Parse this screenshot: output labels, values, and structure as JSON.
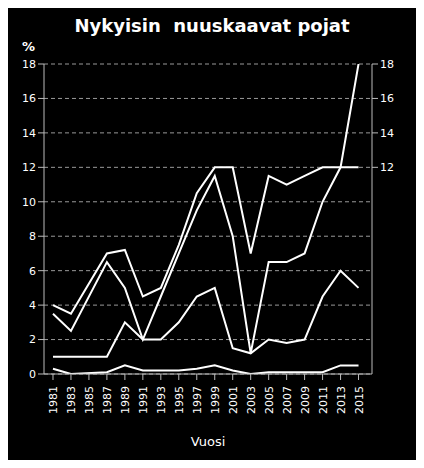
{
  "chart_data": {
    "type": "line",
    "title": "Nykyisin  nuuskaavat pojat",
    "xlabel": "Vuosi",
    "ylabel": "%",
    "xlim": [
      1980,
      2016.5
    ],
    "xticks": [
      1981,
      1983,
      1985,
      1987,
      1989,
      1991,
      1993,
      1995,
      1997,
      1999,
      2001,
      2003,
      2005,
      2007,
      2009,
      2011,
      2013,
      2015
    ],
    "ylim": [
      0,
      18
    ],
    "yticks": [
      0,
      2,
      4,
      6,
      8,
      10,
      12,
      14,
      16,
      18
    ],
    "y2lim": [
      0,
      18
    ],
    "y2ticks": [
      18,
      16,
      14,
      12
    ],
    "grid": "y",
    "series": [
      {
        "color": "#ffffff",
        "x": [
          1981,
          1983,
          1987,
          1989,
          1991,
          1993,
          1995,
          1997,
          1999,
          2001,
          2003,
          2005,
          2007,
          2009,
          2011,
          2013,
          2015
        ],
        "values": [
          4.0,
          3.5,
          7.0,
          7.2,
          4.5,
          5.0,
          7.5,
          10.5,
          12.0,
          12.0,
          7.0,
          11.5,
          11.0,
          11.5,
          12.0,
          12.0,
          12.0
        ]
      },
      {
        "color": "#ffffff",
        "x": [
          1981,
          1983,
          1987,
          1989,
          1991,
          1993,
          1995,
          1997,
          1999,
          2001,
          2003,
          2005,
          2007,
          2009,
          2011,
          2013,
          2015
        ],
        "values": [
          3.5,
          2.5,
          6.5,
          5.0,
          2.0,
          4.5,
          7.0,
          9.5,
          11.5,
          8.0,
          1.2,
          6.5,
          6.5,
          7.0,
          10.0,
          12.0,
          18.0
        ]
      },
      {
        "color": "#ffffff",
        "x": [
          1981,
          1983,
          1987,
          1989,
          1991,
          1993,
          1995,
          1997,
          1999,
          2001,
          2003,
          2005,
          2007,
          2009,
          2011,
          2013,
          2015
        ],
        "values": [
          1.0,
          1.0,
          1.0,
          3.0,
          2.0,
          2.0,
          3.0,
          4.5,
          5.0,
          1.5,
          1.2,
          2.0,
          1.8,
          2.0,
          4.5,
          6.0,
          5.0
        ]
      },
      {
        "color": "#ffffff",
        "x": [
          1981,
          1983,
          1987,
          1989,
          1991,
          1993,
          1995,
          1997,
          1999,
          2001,
          2003,
          2005,
          2007,
          2009,
          2011,
          2013,
          2015
        ],
        "values": [
          0.3,
          0.0,
          0.1,
          0.5,
          0.2,
          0.2,
          0.2,
          0.3,
          0.5,
          0.2,
          0.0,
          0.1,
          0.1,
          0.1,
          0.1,
          0.5,
          0.5
        ]
      }
    ]
  }
}
